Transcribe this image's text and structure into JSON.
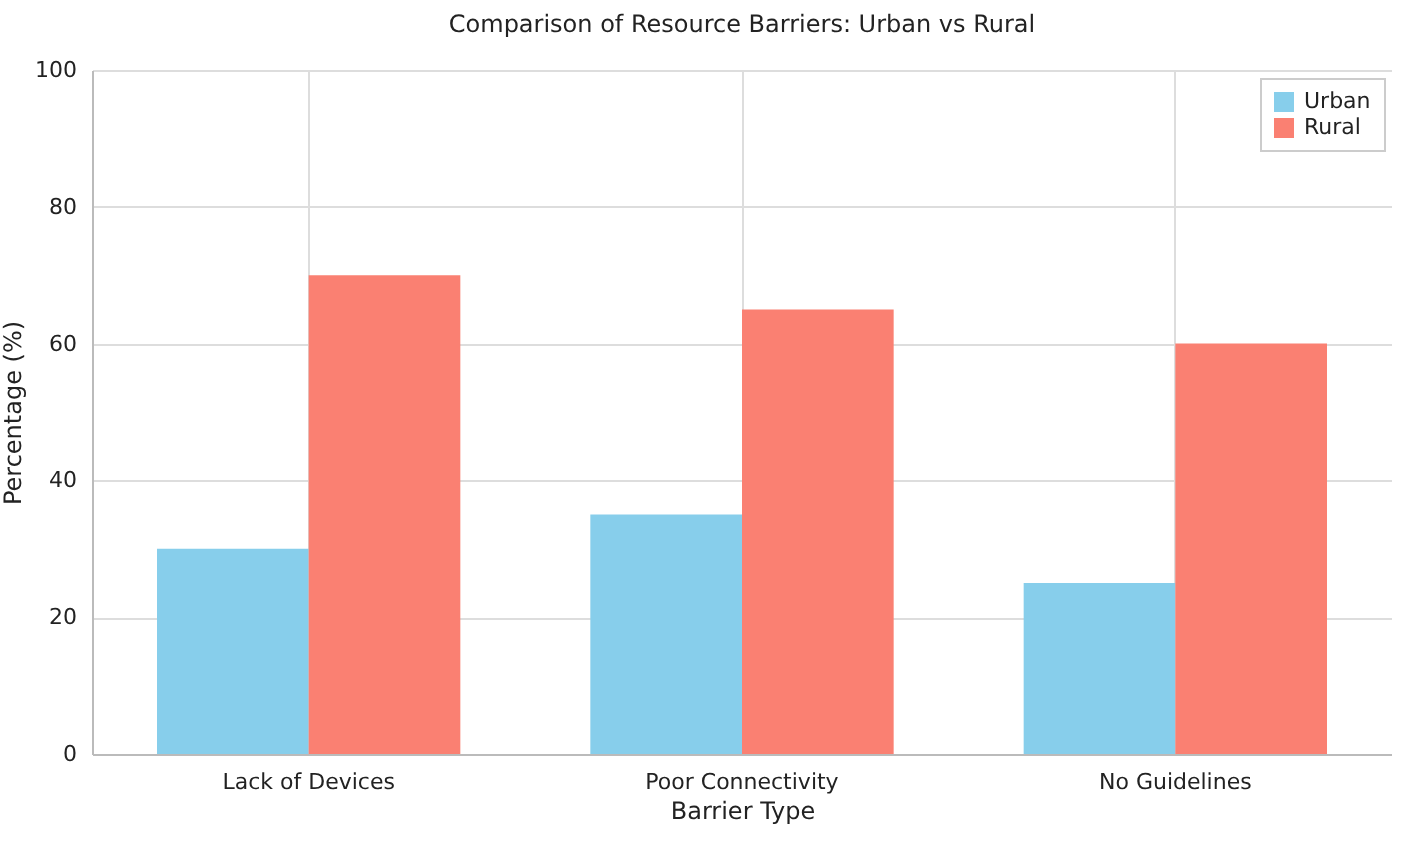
{
  "chart_data": {
    "type": "bar",
    "title": "Comparison of Resource Barriers: Urban vs Rural",
    "xlabel": "Barrier Type",
    "ylabel": "Percentage (%)",
    "categories": [
      "Lack of Devices",
      "Poor Connectivity",
      "No Guidelines"
    ],
    "series": [
      {
        "name": "Urban",
        "color": "#87ceeb",
        "values": [
          30,
          35,
          25
        ]
      },
      {
        "name": "Rural",
        "color": "#fa8072",
        "values": [
          70,
          65,
          60
        ]
      }
    ],
    "ylim": [
      0,
      100
    ],
    "yticks": [
      0,
      20,
      40,
      60,
      80,
      100
    ],
    "grid": true,
    "legend": "top right"
  }
}
